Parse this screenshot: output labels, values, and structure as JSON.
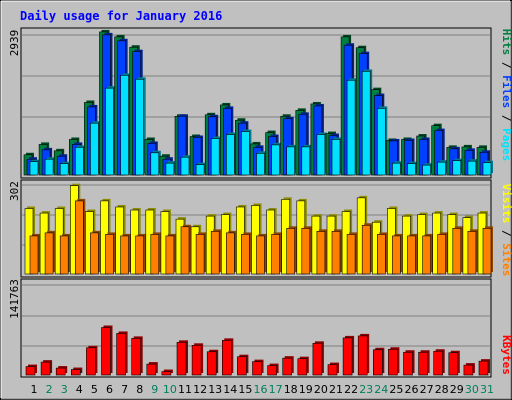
{
  "title": "Daily usage for January 2016",
  "colors": {
    "frame_bg": "#c0c0c0",
    "title_text": "#0000ff",
    "hits": "#008040",
    "files": "#0040ff",
    "pages": "#00e0ff",
    "visits": "#ffff00",
    "sites": "#ff8000",
    "kbytes": "#ff0000",
    "weekend_label": "#00805c"
  },
  "chart_data": [
    {
      "type": "bar",
      "panel": "hits-files-pages",
      "categories": [
        "1",
        "2",
        "3",
        "4",
        "5",
        "6",
        "7",
        "8",
        "9",
        "10",
        "11",
        "12",
        "13",
        "14",
        "15",
        "16",
        "17",
        "18",
        "19",
        "20",
        "21",
        "22",
        "23",
        "24",
        "25",
        "26",
        "27",
        "28",
        "29",
        "30",
        "31"
      ],
      "ytick_label": "2939",
      "ylim": [
        0,
        2939
      ],
      "legend": [
        "Pages",
        "Files",
        "Hits"
      ],
      "series": [
        {
          "name": "Hits",
          "values": [
            410,
            620,
            490,
            720,
            1470,
            2900,
            2800,
            2590,
            720,
            380,
            1190,
            780,
            1220,
            1420,
            1110,
            630,
            860,
            1190,
            1310,
            1440,
            840,
            2800,
            2580,
            1730,
            700,
            720,
            790,
            1000,
            560,
            570,
            560
          ]
        },
        {
          "name": "Files",
          "values": [
            320,
            510,
            380,
            620,
            1380,
            2840,
            2720,
            2500,
            640,
            320,
            1190,
            760,
            1180,
            1350,
            1050,
            560,
            780,
            1140,
            1230,
            1400,
            800,
            2630,
            2460,
            1610,
            690,
            700,
            720,
            900,
            530,
            500,
            460
          ]
        },
        {
          "name": "Pages",
          "values": [
            270,
            320,
            230,
            560,
            1050,
            1760,
            2020,
            1940,
            450,
            240,
            360,
            210,
            740,
            820,
            880,
            440,
            610,
            570,
            570,
            820,
            720,
            1920,
            2100,
            1350,
            240,
            230,
            200,
            260,
            290,
            280,
            250
          ]
        }
      ]
    },
    {
      "type": "bar",
      "panel": "visits-sites",
      "categories": [
        "1",
        "2",
        "3",
        "4",
        "5",
        "6",
        "7",
        "8",
        "9",
        "10",
        "11",
        "12",
        "13",
        "14",
        "15",
        "16",
        "17",
        "18",
        "19",
        "20",
        "21",
        "22",
        "23",
        "24",
        "25",
        "26",
        "27",
        "28",
        "29",
        "30",
        "31"
      ],
      "ytick_label": "302",
      "ylim": [
        0,
        302
      ],
      "legend": [
        "Sites",
        "Visits"
      ],
      "series": [
        {
          "name": "Visits",
          "values": [
            215,
            200,
            215,
            290,
            205,
            240,
            220,
            210,
            210,
            205,
            180,
            155,
            190,
            195,
            220,
            225,
            210,
            245,
            240,
            190,
            190,
            205,
            250,
            170,
            215,
            190,
            195,
            200,
            195,
            185,
            200
          ]
        },
        {
          "name": "Sites",
          "values": [
            125,
            135,
            125,
            240,
            135,
            130,
            125,
            125,
            130,
            125,
            155,
            130,
            140,
            135,
            130,
            125,
            130,
            150,
            150,
            140,
            140,
            130,
            160,
            130,
            125,
            125,
            125,
            130,
            150,
            140,
            150
          ]
        }
      ]
    },
    {
      "type": "bar",
      "panel": "kbytes",
      "categories": [
        "1",
        "2",
        "3",
        "4",
        "5",
        "6",
        "7",
        "8",
        "9",
        "10",
        "11",
        "12",
        "13",
        "14",
        "15",
        "16",
        "17",
        "18",
        "19",
        "20",
        "21",
        "22",
        "23",
        "24",
        "25",
        "26",
        "27",
        "28",
        "29",
        "30",
        "31"
      ],
      "ytick_label": "141763",
      "ylim": [
        0,
        141763
      ],
      "legend": [
        "KBytes"
      ],
      "series": [
        {
          "name": "KBytes",
          "values": [
            17000,
            26000,
            14000,
            11000,
            55000,
            96000,
            84000,
            74000,
            22000,
            7000,
            66000,
            60000,
            47000,
            70000,
            37000,
            27000,
            19000,
            34000,
            33000,
            64000,
            21000,
            75000,
            79000,
            51000,
            52000,
            46000,
            46000,
            48000,
            45000,
            20000,
            28000
          ]
        }
      ]
    }
  ]
}
